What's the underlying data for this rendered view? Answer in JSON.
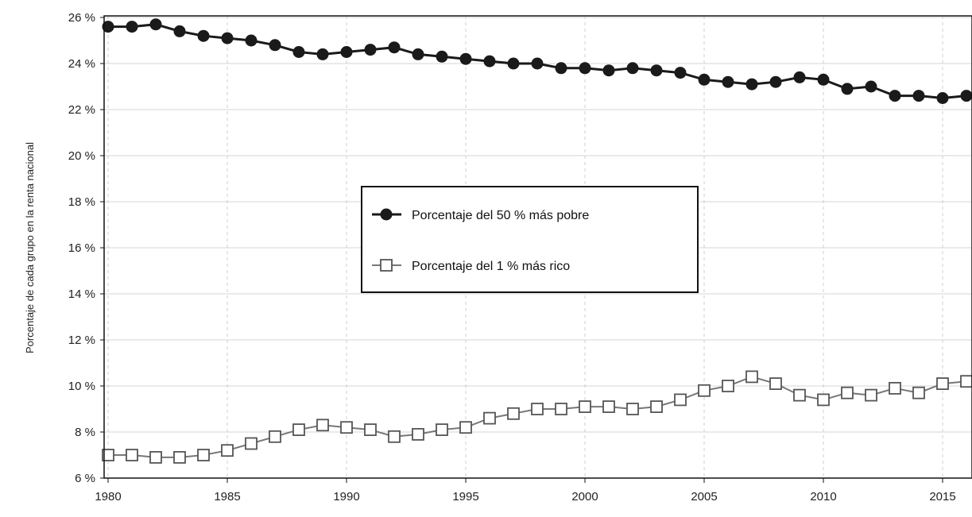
{
  "chart_data": {
    "type": "line",
    "title": "",
    "xlabel": "",
    "ylabel": "Porcentaje de cada grupo en la renta nacional",
    "xlim": [
      1980,
      2016
    ],
    "ylim": [
      6,
      26
    ],
    "x_ticks": [
      "1980",
      "1985",
      "1990",
      "1995",
      "2000",
      "2005",
      "2010",
      "2015"
    ],
    "y_ticks": [
      "6 %",
      "8 %",
      "10 %",
      "12 %",
      "14 %",
      "16 %",
      "18 %",
      "20 %",
      "22 %",
      "24 %",
      "26 %"
    ],
    "grid": true,
    "legend_position": "center",
    "x": [
      1980,
      1981,
      1982,
      1983,
      1984,
      1985,
      1986,
      1987,
      1988,
      1989,
      1990,
      1991,
      1992,
      1993,
      1994,
      1995,
      1996,
      1997,
      1998,
      1999,
      2000,
      2001,
      2002,
      2003,
      2004,
      2005,
      2006,
      2007,
      2008,
      2009,
      2010,
      2011,
      2012,
      2013,
      2014,
      2015,
      2016
    ],
    "series": [
      {
        "name": "Porcentaje del 50 % más pobre",
        "marker": "filled-circle",
        "color": "#1a1a1a",
        "values": [
          25.6,
          25.6,
          25.7,
          25.4,
          25.2,
          25.1,
          25.0,
          24.8,
          24.5,
          24.4,
          24.5,
          24.6,
          24.7,
          24.4,
          24.3,
          24.2,
          24.1,
          24.0,
          24.0,
          23.8,
          23.8,
          23.7,
          23.8,
          23.7,
          23.6,
          23.3,
          23.2,
          23.1,
          23.2,
          23.4,
          23.3,
          22.9,
          23.0,
          22.6,
          22.6,
          22.5,
          22.6
        ]
      },
      {
        "name": "Porcentaje del 1 % más rico",
        "marker": "open-square",
        "color": "#777777",
        "values": [
          7.0,
          7.0,
          6.9,
          6.9,
          7.0,
          7.2,
          7.5,
          7.8,
          8.1,
          8.3,
          8.2,
          8.1,
          7.8,
          7.9,
          8.1,
          8.2,
          8.6,
          8.8,
          9.0,
          9.0,
          9.1,
          9.1,
          9.0,
          9.1,
          9.4,
          9.8,
          10.0,
          10.4,
          10.1,
          9.6,
          9.4,
          9.7,
          9.6,
          9.9,
          9.7,
          10.1,
          10.2
        ]
      }
    ]
  }
}
